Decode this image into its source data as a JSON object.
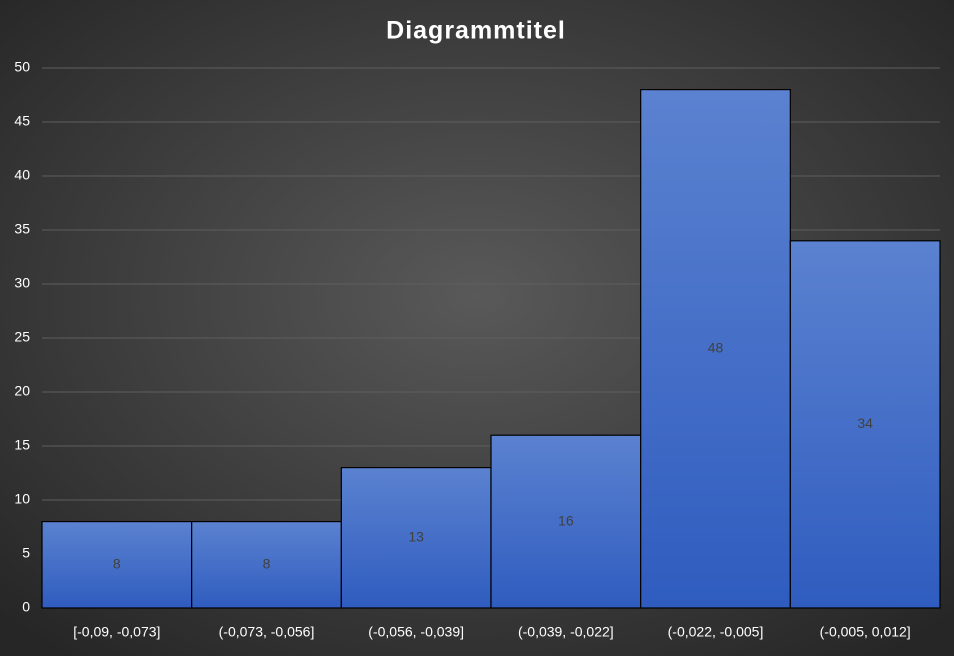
{
  "chart_data": {
    "type": "bar",
    "title": "Diagrammtitel",
    "categories": [
      "[-0,09, -0,073]",
      "(-0,073, -0,056]",
      "(-0,056, -0,039]",
      "(-0,039, -0,022]",
      "(-0,022, -0,005]",
      "(-0,005, 0,012]"
    ],
    "values": [
      8,
      8,
      13,
      16,
      48,
      34
    ],
    "color": "#4472c4",
    "ylim": [
      0,
      50
    ],
    "yticks": [
      0,
      5,
      10,
      15,
      20,
      25,
      30,
      35,
      40,
      45,
      50
    ],
    "grid": true
  }
}
